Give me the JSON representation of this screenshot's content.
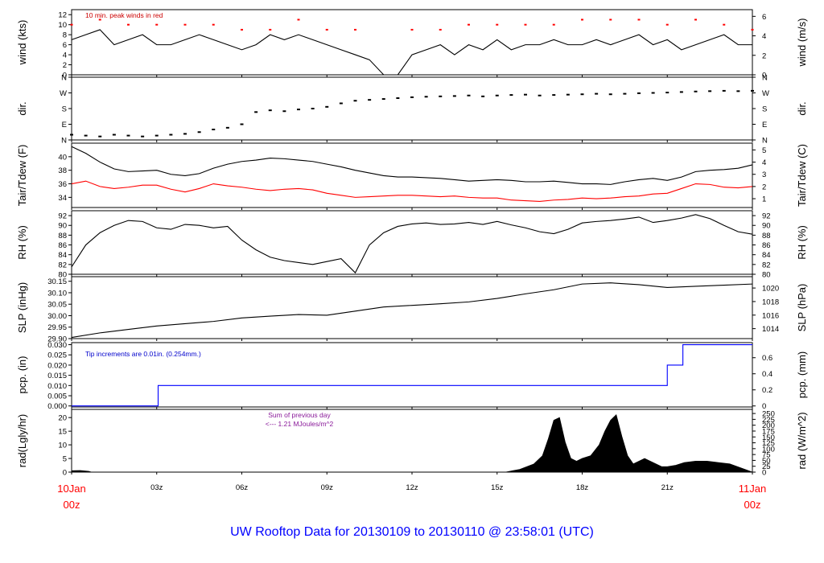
{
  "chart_data": {
    "footer_title": "UW Rooftop Data for 20130109  to  20130110 @ 23:58:01  (UTC)",
    "x_axis": {
      "ticks": [
        "03z",
        "06z",
        "09z",
        "12z",
        "15z",
        "18z",
        "21z"
      ],
      "start_label": [
        "10Jan",
        "00z"
      ],
      "end_label": [
        "11Jan",
        "00z"
      ],
      "range_hours": [
        0,
        24
      ]
    },
    "panels": [
      {
        "id": "wind",
        "type": "line",
        "ylabel_left": "wind (kts)",
        "ylabel_right": "wind (m/s)",
        "yticks_left": [
          "0",
          "2",
          "4",
          "6",
          "8",
          "10",
          "12"
        ],
        "yticks_right": [
          "0",
          "2",
          "4",
          "6"
        ],
        "ylim": [
          0,
          13
        ],
        "annotation": "10 min. peak winds in red",
        "series": [
          {
            "key": "wind",
            "color": "#000000",
            "x": [
              0,
              0.5,
              1,
              1.5,
              2,
              2.5,
              3,
              3.5,
              4,
              4.5,
              5,
              5.5,
              6,
              6.5,
              7,
              7.5,
              8,
              8.5,
              9,
              9.5,
              10,
              10.5,
              11,
              11.5,
              12,
              12.5,
              13,
              13.5,
              14,
              14.5,
              15,
              15.5,
              16,
              16.5,
              17,
              17.5,
              18,
              18.5,
              19,
              19.5,
              20,
              20.5,
              21,
              21.5,
              22,
              22.5,
              23,
              23.5,
              24
            ],
            "y": [
              7,
              8,
              9,
              6,
              7,
              8,
              6,
              6,
              7,
              8,
              7,
              6,
              5,
              6,
              8,
              7,
              8,
              7,
              6,
              5,
              4,
              3,
              0,
              0,
              4,
              5,
              6,
              4,
              6,
              5,
              7,
              5,
              6,
              6,
              7,
              6,
              6,
              7,
              6,
              7,
              8,
              6,
              7,
              5,
              6,
              7,
              8,
              6,
              6
            ]
          },
          {
            "key": "peak",
            "color": "#ff0000",
            "x": [
              0,
              1,
              2,
              3,
              4,
              5,
              6,
              7,
              8,
              9,
              10,
              12,
              13,
              14,
              15,
              16,
              17,
              18,
              19,
              20,
              21,
              22,
              23,
              24
            ],
            "y": [
              10,
              11,
              10,
              10,
              10,
              10,
              9,
              9,
              11,
              9,
              9,
              9,
              9,
              10,
              10,
              10,
              10,
              11,
              11,
              11,
              10,
              11,
              10,
              9
            ]
          }
        ]
      },
      {
        "id": "dir",
        "type": "scatter",
        "ylabel_left": "dir.",
        "ylabel_right": "dir.",
        "yticks_left": [
          "N",
          "E",
          "S",
          "W",
          "N"
        ],
        "yticks_right": [
          "N",
          "E",
          "S",
          "W",
          "N"
        ],
        "ylim": [
          0,
          360
        ],
        "series": [
          {
            "key": "dir",
            "color": "#000000",
            "x": [
              0,
              0.5,
              1,
              1.5,
              2,
              2.5,
              3,
              3.5,
              4,
              4.5,
              5,
              5.5,
              6,
              6.5,
              7,
              7.5,
              8,
              8.5,
              9,
              9.5,
              10,
              10.5,
              11,
              11.5,
              12,
              12.5,
              13,
              13.5,
              14,
              14.5,
              15,
              15.5,
              16,
              16.5,
              17,
              17.5,
              18,
              18.5,
              19,
              19.5,
              20,
              20.5,
              21,
              21.5,
              22,
              22.5,
              23,
              23.5,
              24
            ],
            "y": [
              30,
              25,
              20,
              30,
              25,
              20,
              25,
              30,
              35,
              45,
              60,
              70,
              90,
              160,
              170,
              165,
              175,
              180,
              190,
              210,
              225,
              230,
              235,
              240,
              245,
              248,
              250,
              252,
              255,
              250,
              255,
              258,
              260,
              255,
              258,
              260,
              262,
              265,
              262,
              265,
              268,
              270,
              272,
              275,
              278,
              280,
              282,
              280,
              282
            ]
          }
        ]
      },
      {
        "id": "temp",
        "type": "line",
        "ylabel_left": "Tair/Tdew (F)",
        "ylabel_right": "Tair/Tdew (C)",
        "yticks_left": [
          "34",
          "36",
          "38",
          "40"
        ],
        "yticks_right": [
          "1",
          "2",
          "3",
          "4",
          "5"
        ],
        "ylim": [
          32.5,
          42
        ],
        "series": [
          {
            "key": "Tair",
            "color": "#000000",
            "x": [
              0,
              0.5,
              1,
              1.5,
              2,
              2.5,
              3,
              3.5,
              4,
              4.5,
              5,
              5.5,
              6,
              6.5,
              7,
              7.5,
              8,
              8.5,
              9,
              9.5,
              10,
              10.5,
              11,
              11.5,
              12,
              12.5,
              13,
              13.5,
              14,
              14.5,
              15,
              15.5,
              16,
              16.5,
              17,
              17.5,
              18,
              18.5,
              19,
              19.5,
              20,
              20.5,
              21,
              21.5,
              22,
              22.5,
              23,
              23.5,
              24
            ],
            "y": [
              41.5,
              40.5,
              39.2,
              38.2,
              37.8,
              37.9,
              38.0,
              37.4,
              37.2,
              37.5,
              38.3,
              38.9,
              39.3,
              39.5,
              39.8,
              39.7,
              39.5,
              39.3,
              38.9,
              38.5,
              38.0,
              37.6,
              37.2,
              37.0,
              37.0,
              36.9,
              36.8,
              36.6,
              36.4,
              36.5,
              36.6,
              36.5,
              36.3,
              36.3,
              36.4,
              36.2,
              36.0,
              36.0,
              35.9,
              36.3,
              36.6,
              36.8,
              36.5,
              37.0,
              37.8,
              38.0,
              38.1,
              38.3,
              38.8
            ]
          },
          {
            "key": "Tdew",
            "color": "#ff0000",
            "x": [
              0,
              0.5,
              1,
              1.5,
              2,
              2.5,
              3,
              3.5,
              4,
              4.5,
              5,
              5.5,
              6,
              6.5,
              7,
              7.5,
              8,
              8.5,
              9,
              9.5,
              10,
              10.5,
              11,
              11.5,
              12,
              12.5,
              13,
              13.5,
              14,
              14.5,
              15,
              15.5,
              16,
              16.5,
              17,
              17.5,
              18,
              18.5,
              19,
              19.5,
              20,
              20.5,
              21,
              21.5,
              22,
              22.5,
              23,
              23.5,
              24
            ],
            "y": [
              36.0,
              36.4,
              35.6,
              35.3,
              35.5,
              35.8,
              35.8,
              35.2,
              34.8,
              35.3,
              36.0,
              35.7,
              35.5,
              35.2,
              35.0,
              35.2,
              35.3,
              35.1,
              34.6,
              34.3,
              34.0,
              34.1,
              34.2,
              34.3,
              34.3,
              34.2,
              34.1,
              34.2,
              34.0,
              33.9,
              33.9,
              33.6,
              33.5,
              33.4,
              33.6,
              33.7,
              33.9,
              33.8,
              33.9,
              34.1,
              34.2,
              34.5,
              34.6,
              35.3,
              36.0,
              35.9,
              35.5,
              35.4,
              35.6
            ]
          }
        ]
      },
      {
        "id": "rh",
        "type": "line",
        "ylabel_left": "RH (%)",
        "ylabel_right": "RH (%)",
        "yticks_left": [
          "80",
          "82",
          "84",
          "86",
          "88",
          "90",
          "92"
        ],
        "yticks_right": [
          "80",
          "82",
          "84",
          "86",
          "88",
          "90",
          "92"
        ],
        "ylim": [
          80,
          93
        ],
        "series": [
          {
            "key": "rh",
            "color": "#000000",
            "x": [
              0,
              0.5,
              1,
              1.5,
              2,
              2.5,
              3,
              3.5,
              4,
              4.5,
              5,
              5.5,
              6,
              6.5,
              7,
              7.5,
              8,
              8.5,
              9,
              9.5,
              10,
              10.5,
              11,
              11.5,
              12,
              12.5,
              13,
              13.5,
              14,
              14.5,
              15,
              15.5,
              16,
              16.5,
              17,
              17.5,
              18,
              18.5,
              19,
              19.5,
              20,
              20.5,
              21,
              21.5,
              22,
              22.5,
              23,
              23.5,
              24
            ],
            "y": [
              81.5,
              86,
              88.5,
              90,
              91,
              90.8,
              89.5,
              89.2,
              90.2,
              90,
              89.5,
              89.8,
              87,
              85,
              83.5,
              82.8,
              82.4,
              82,
              82.6,
              83.2,
              80.3,
              86,
              88.5,
              89.8,
              90.3,
              90.5,
              90.2,
              90.3,
              90.6,
              90.2,
              90.8,
              90.1,
              89.5,
              88.7,
              88.3,
              89.2,
              90.5,
              90.8,
              91,
              91.3,
              91.7,
              90.6,
              91,
              91.5,
              92.2,
              91.4,
              90,
              88.7,
              88.2
            ]
          }
        ]
      },
      {
        "id": "slp",
        "type": "line",
        "ylabel_left": "SLP (inHg)",
        "ylabel_right": "SLP (hPa)",
        "yticks_left": [
          "29.90",
          "29.95",
          "30.00",
          "30.05",
          "30.10",
          "30.15"
        ],
        "yticks_right": [
          "1014",
          "1016",
          "1018",
          "1020"
        ],
        "ylim": [
          29.9,
          30.17
        ],
        "series": [
          {
            "key": "slp",
            "color": "#000000",
            "x": [
              0,
              1,
              2,
              3,
              4,
              5,
              6,
              7,
              8,
              9,
              10,
              11,
              12,
              13,
              14,
              15,
              16,
              17,
              18,
              19,
              20,
              21,
              22,
              23,
              24
            ],
            "y": [
              29.905,
              29.925,
              29.94,
              29.955,
              29.965,
              29.975,
              29.99,
              29.998,
              30.005,
              30.002,
              30.02,
              30.038,
              30.045,
              30.052,
              30.06,
              30.075,
              30.095,
              30.113,
              30.138,
              30.143,
              30.135,
              30.123,
              30.128,
              30.133,
              30.138
            ]
          }
        ]
      },
      {
        "id": "pcp",
        "type": "step",
        "ylabel_left": "pcp. (in)",
        "ylabel_right": "pcp. (mm)",
        "yticks_left": [
          "0.000",
          "0.005",
          "0.010",
          "0.015",
          "0.020",
          "0.025",
          "0.030"
        ],
        "yticks_right": [
          "0",
          "0.2",
          "0.4",
          "0.6"
        ],
        "ylim": [
          -0.0005,
          0.031
        ],
        "annotation": "Tip increments are 0.01in. (0.254mm.)",
        "series": [
          {
            "key": "pcp",
            "color": "#0000ff",
            "x": [
              0,
              3.05,
              3.05,
              21.0,
              21.0,
              21.55,
              21.55,
              24
            ],
            "y": [
              0,
              0,
              0.01,
              0.01,
              0.02,
              0.02,
              0.03,
              0.03
            ]
          }
        ]
      },
      {
        "id": "rad",
        "type": "area",
        "ylabel_left": "rad(Lgly/hr)",
        "ylabel_right": "rad (W/m^2)",
        "yticks_left": [
          "0",
          "5",
          "10",
          "15",
          "20"
        ],
        "yticks_right": [
          "0",
          "25",
          "50",
          "75",
          "100",
          "125",
          "150",
          "175",
          "200",
          "225",
          "250"
        ],
        "ylim": [
          0,
          23
        ],
        "annotation_lines": [
          "Sum of previous day",
          "<--- 1.21 MJoules/m^2"
        ],
        "series": [
          {
            "key": "rad",
            "color": "#000000",
            "x": [
              0,
              0.3,
              0.6,
              0.7,
              15.3,
              15.8,
              16.3,
              16.6,
              16.8,
              17.0,
              17.2,
              17.4,
              17.6,
              17.8,
              18.0,
              18.3,
              18.6,
              18.8,
              19.0,
              19.2,
              19.4,
              19.6,
              19.8,
              20.0,
              20.2,
              20.4,
              20.6,
              20.8,
              21.0,
              21.3,
              21.6,
              22.0,
              22.4,
              22.8,
              23.2,
              23.6,
              24
            ],
            "y": [
              0.5,
              0.6,
              0.3,
              0,
              0,
              1,
              3,
              6,
              12,
              19,
              20,
              11,
              5,
              4,
              5,
              6,
              10,
              15,
              19,
              21,
              13,
              6,
              3,
              4,
              5,
              4,
              3,
              2,
              2,
              2.5,
              3.5,
              4,
              4,
              3.5,
              3,
              1.5,
              0
            ]
          }
        ]
      }
    ]
  }
}
